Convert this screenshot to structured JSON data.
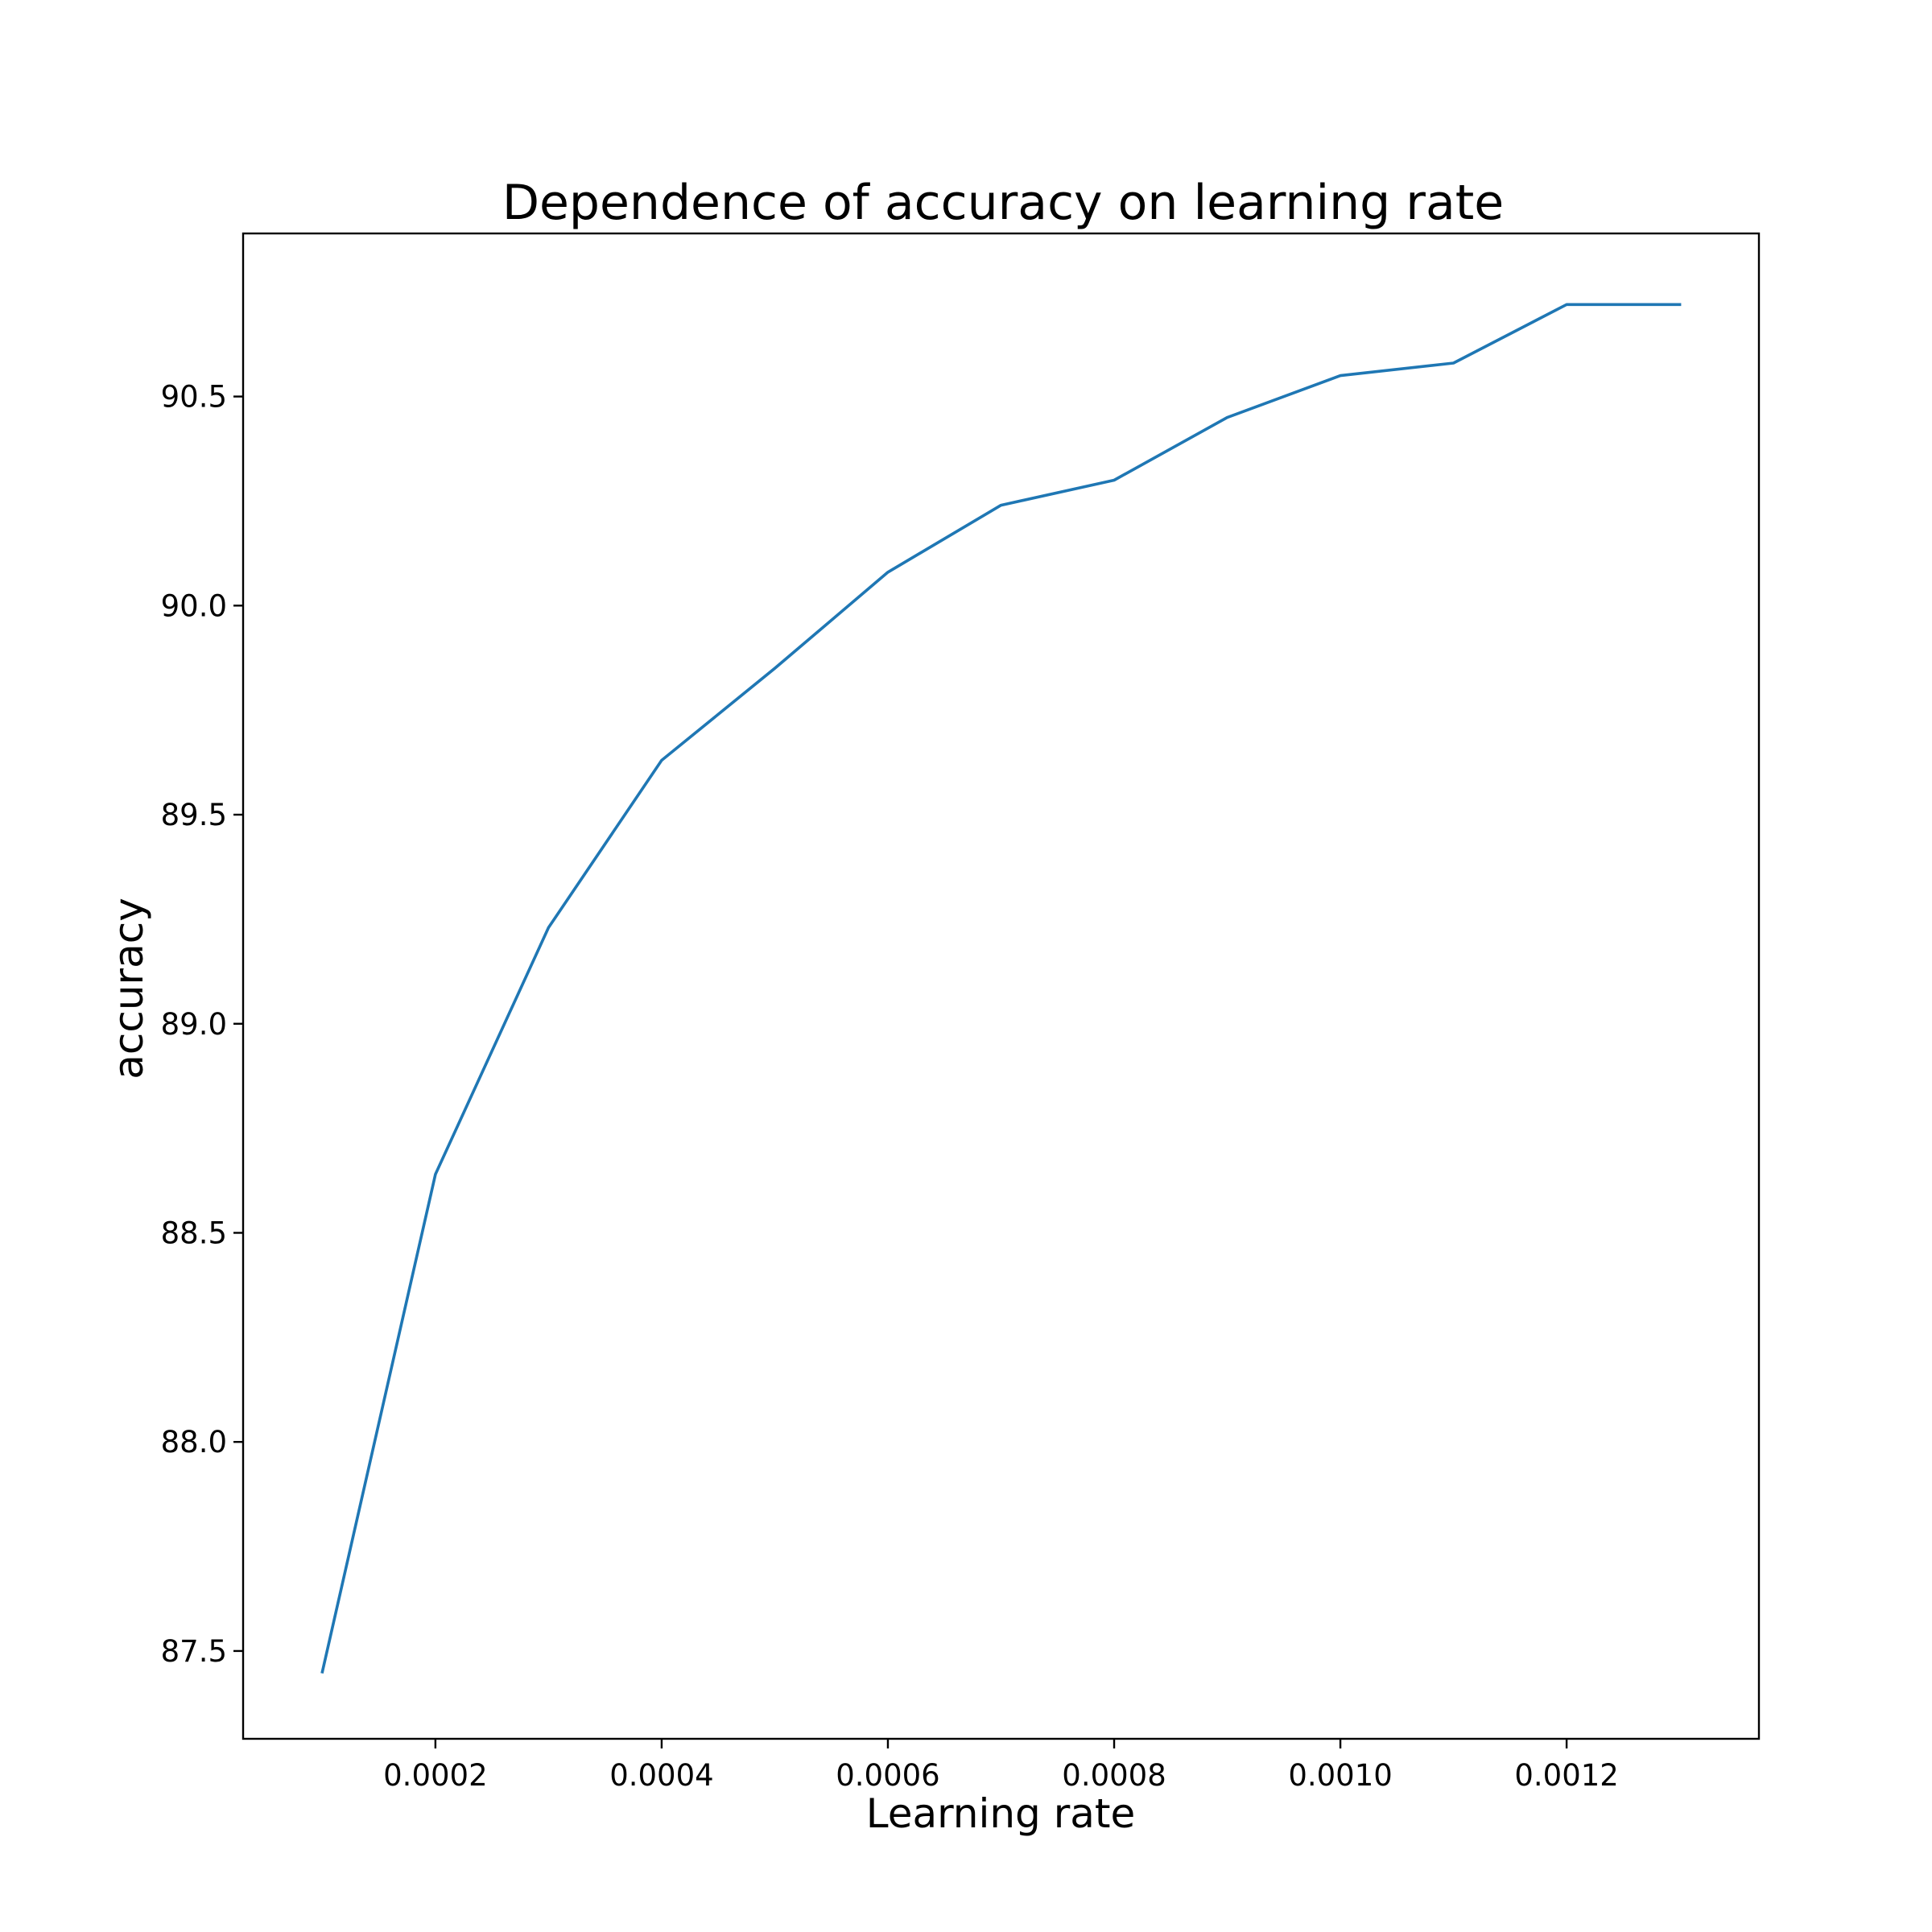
{
  "chart_data": {
    "type": "line",
    "title": "Dependence of accuracy on learning rate",
    "xlabel": "Learning rate",
    "ylabel": "accuracy",
    "xlim": [
      3e-05,
      0.00137
    ],
    "ylim": [
      87.29,
      90.89
    ],
    "xticks": [
      0.0002,
      0.0004,
      0.0006,
      0.0008,
      0.001,
      0.0012
    ],
    "xtick_labels": [
      "0.0002",
      "0.0004",
      "0.0006",
      "0.0008",
      "0.0010",
      "0.0012"
    ],
    "yticks": [
      87.5,
      88.0,
      88.5,
      89.0,
      89.5,
      90.0,
      90.5
    ],
    "ytick_labels": [
      "87.5",
      "88.0",
      "88.5",
      "89.0",
      "89.5",
      "90.0",
      "90.5"
    ],
    "grid": false,
    "series": [
      {
        "color": "#1f77b4",
        "x": [
          0.0001,
          0.0002,
          0.0003,
          0.0004,
          0.0005,
          0.0006,
          0.0007,
          0.0008,
          0.0009,
          0.001,
          0.0011,
          0.0012,
          0.0013
        ],
        "y": [
          87.45,
          88.64,
          89.23,
          89.63,
          89.85,
          90.08,
          90.24,
          90.3,
          90.45,
          90.55,
          90.58,
          90.72,
          90.72
        ]
      }
    ]
  }
}
